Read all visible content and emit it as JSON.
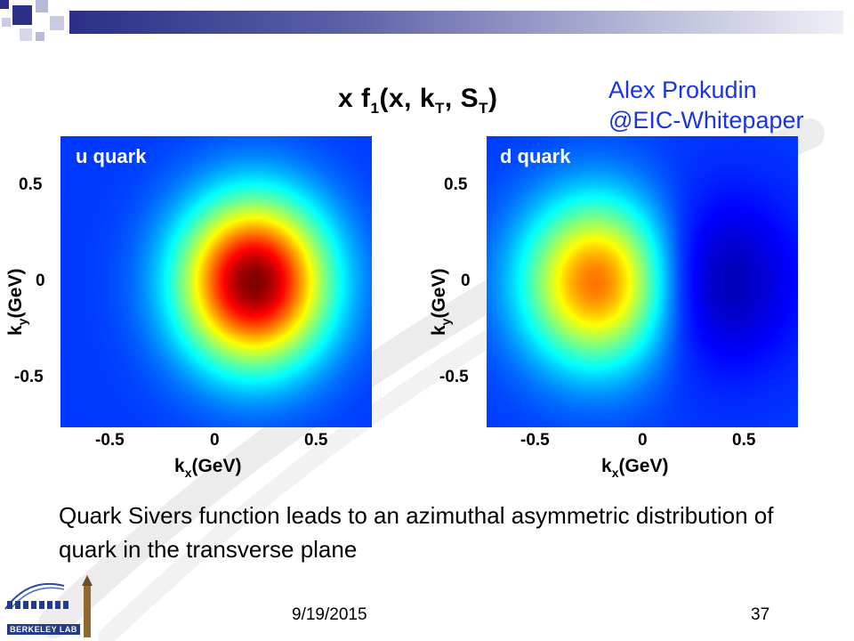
{
  "credit": {
    "line1": "Alex Prokudin",
    "line2": "@EIC-Whitepaper"
  },
  "chart_data": [
    {
      "type": "heatmap",
      "panel_label": "u quark",
      "title": "x f1(x, kT, ST)",
      "xlabel": "kx(GeV)",
      "ylabel": "ky(GeV)",
      "xlim": [
        -0.75,
        0.75
      ],
      "ylim": [
        -0.75,
        0.75
      ],
      "xticks": [
        "-0.5",
        "0",
        "0.5"
      ],
      "yticks": [
        "0.5",
        "0",
        "-0.5"
      ],
      "peaks": [
        {
          "kx": 0.18,
          "ky": 0.0,
          "relative_intensity": 1.0
        }
      ],
      "colormap": "jet"
    },
    {
      "type": "heatmap",
      "panel_label": "d quark",
      "xlabel": "kx(GeV)",
      "ylabel": "ky(GeV)",
      "xlim": [
        -0.75,
        0.75
      ],
      "ylim": [
        -0.75,
        0.75
      ],
      "xticks": [
        "-0.5",
        "0",
        "0.5"
      ],
      "yticks": [
        "0.5",
        "0",
        "-0.5"
      ],
      "peaks": [
        {
          "kx": -0.22,
          "ky": 0.0,
          "relative_intensity": 0.72
        },
        {
          "kx": 0.38,
          "ky": 0.0,
          "relative_intensity": -0.25
        }
      ],
      "colormap": "jet"
    }
  ],
  "caption": "Quark Sivers function leads to an azimuthal asymmetric distribution of quark in the transverse plane",
  "footer": {
    "date": "9/19/2015",
    "page": "37"
  },
  "logo": {
    "text": "BERKELEY LAB"
  },
  "colors": {
    "credit": "#1a35e0",
    "header_bar": "#2b2f87"
  }
}
